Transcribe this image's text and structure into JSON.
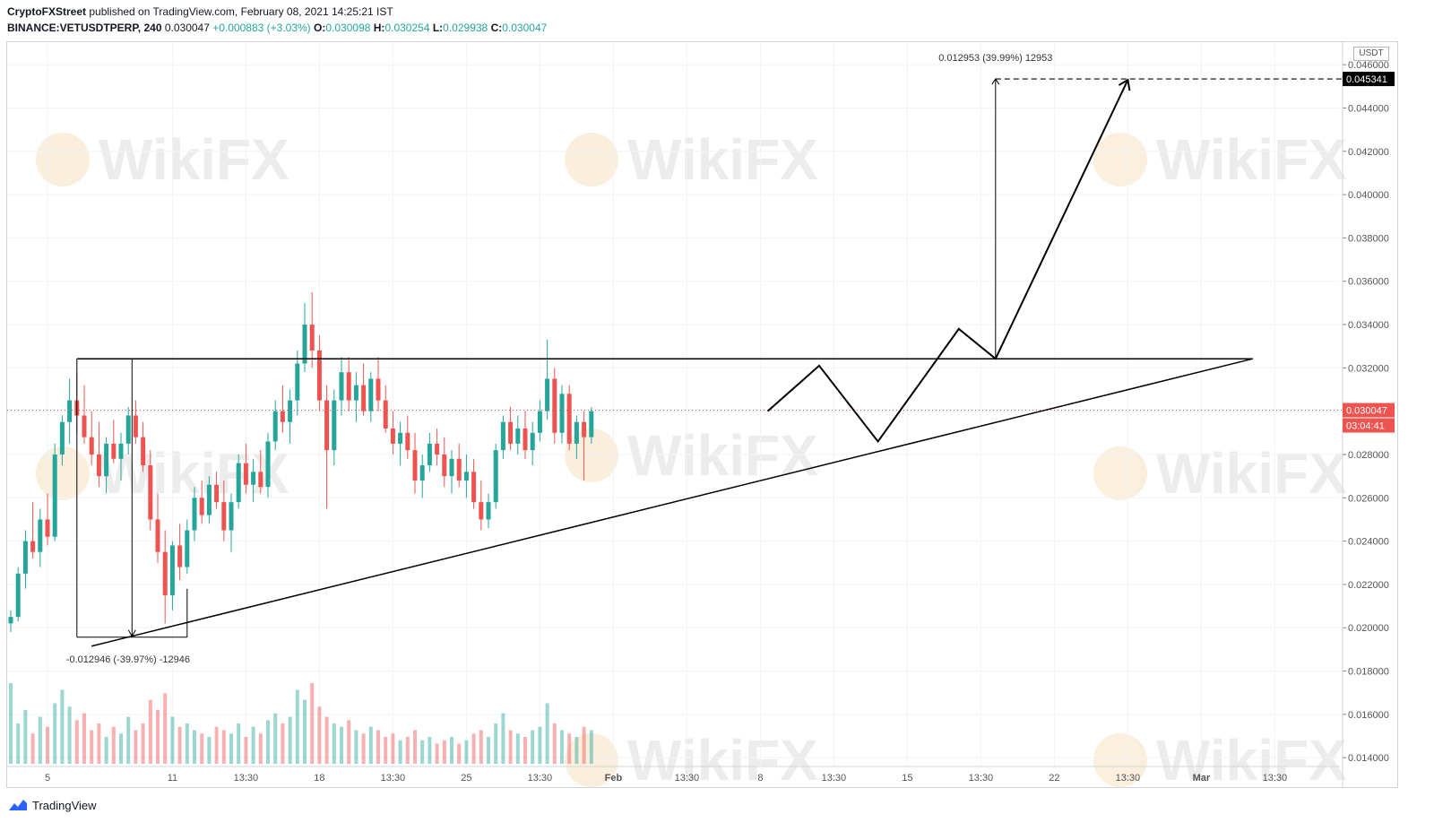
{
  "header": {
    "publisher": "CryptoFXStreet",
    "published_text": " published on TradingView.com, February 08, 2021 14:25:21 IST",
    "symbol": "BINANCE:VETUSDTPERP, 240",
    "last": "0.030047",
    "change": "+0.000883 (+3.03%)",
    "o_label": "O:",
    "o_value": "0.030098",
    "h_label": "H:",
    "h_value": "0.030254",
    "l_label": "L:",
    "l_value": "0.029938",
    "c_label": "C:",
    "c_value": "0.030047"
  },
  "footer": {
    "brand": "TradingView"
  },
  "watermark": "WikiFX",
  "colors": {
    "up": "#26a69a",
    "down": "#ef5350",
    "line": "#000000",
    "price_line": "#ef5350",
    "grid": "#f0f3fa"
  },
  "chart_data": {
    "type": "candlestick",
    "y_unit": "USDT",
    "ylim": [
      0.0138,
      0.047
    ],
    "y_ticks": [
      "0.046000",
      "0.044000",
      "0.042000",
      "0.040000",
      "0.038000",
      "0.036000",
      "0.034000",
      "0.032000",
      "0.030000",
      "0.028000",
      "0.026000",
      "0.024000",
      "0.022000",
      "0.020000",
      "0.018000",
      "0.016000",
      "0.014000"
    ],
    "x_ticks": [
      "5",
      "11",
      "13:30",
      "18",
      "13:30",
      "25",
      "13:30",
      "Feb",
      "13:30",
      "8",
      "13:30",
      "15",
      "13:30",
      "22",
      "13:30",
      "Mar",
      "13:30"
    ],
    "x_tick_index": [
      5,
      22,
      32,
      42,
      52,
      62,
      72,
      82,
      92,
      102,
      112,
      122,
      132,
      142,
      152,
      162,
      172
    ],
    "current_price_label": "0.030047",
    "countdown_label": "03:04:41",
    "target_price_label": "0.045341",
    "measure_up_label": "0.012953 (39.99%) 12953",
    "measure_down_label": "-0.012946 (-39.97%) -12946",
    "candles_ohlc": [
      [
        0.0202,
        0.0208,
        0.0198,
        0.0205
      ],
      [
        0.0205,
        0.0228,
        0.0203,
        0.0225
      ],
      [
        0.0225,
        0.0245,
        0.0218,
        0.024
      ],
      [
        0.024,
        0.0258,
        0.0232,
        0.0235
      ],
      [
        0.0235,
        0.0255,
        0.0228,
        0.025
      ],
      [
        0.025,
        0.0262,
        0.0238,
        0.0242
      ],
      [
        0.0242,
        0.0285,
        0.024,
        0.028
      ],
      [
        0.028,
        0.0298,
        0.0275,
        0.0295
      ],
      [
        0.0295,
        0.0315,
        0.0285,
        0.0305
      ],
      [
        0.0305,
        0.0318,
        0.029,
        0.0298
      ],
      [
        0.0298,
        0.0312,
        0.0285,
        0.0288
      ],
      [
        0.0288,
        0.03,
        0.0275,
        0.028
      ],
      [
        0.028,
        0.0295,
        0.0265,
        0.027
      ],
      [
        0.027,
        0.0288,
        0.0262,
        0.0285
      ],
      [
        0.0285,
        0.0296,
        0.0276,
        0.0278
      ],
      [
        0.0278,
        0.029,
        0.0268,
        0.0285
      ],
      [
        0.0285,
        0.0302,
        0.028,
        0.0298
      ],
      [
        0.0298,
        0.0305,
        0.0285,
        0.0288
      ],
      [
        0.0288,
        0.0295,
        0.0272,
        0.0275
      ],
      [
        0.0275,
        0.0282,
        0.0245,
        0.025
      ],
      [
        0.025,
        0.0262,
        0.023,
        0.0235
      ],
      [
        0.0235,
        0.0245,
        0.0202,
        0.0215
      ],
      [
        0.0215,
        0.024,
        0.0208,
        0.0238
      ],
      [
        0.0238,
        0.0248,
        0.0222,
        0.0228
      ],
      [
        0.0228,
        0.025,
        0.0225,
        0.0245
      ],
      [
        0.0245,
        0.0265,
        0.024,
        0.026
      ],
      [
        0.026,
        0.0268,
        0.0248,
        0.0252
      ],
      [
        0.0252,
        0.027,
        0.0248,
        0.0266
      ],
      [
        0.0266,
        0.0272,
        0.0255,
        0.0258
      ],
      [
        0.0258,
        0.0268,
        0.024,
        0.0245
      ],
      [
        0.0245,
        0.0262,
        0.0235,
        0.0258
      ],
      [
        0.0258,
        0.028,
        0.0255,
        0.0276
      ],
      [
        0.0276,
        0.0285,
        0.0262,
        0.0266
      ],
      [
        0.0266,
        0.0278,
        0.0258,
        0.0272
      ],
      [
        0.0272,
        0.0282,
        0.0262,
        0.0265
      ],
      [
        0.0265,
        0.029,
        0.026,
        0.0286
      ],
      [
        0.0286,
        0.0305,
        0.0282,
        0.03
      ],
      [
        0.03,
        0.0312,
        0.029,
        0.0295
      ],
      [
        0.0295,
        0.031,
        0.0285,
        0.0305
      ],
      [
        0.0305,
        0.0328,
        0.0298,
        0.0322
      ],
      [
        0.0322,
        0.035,
        0.0318,
        0.034
      ],
      [
        0.034,
        0.0355,
        0.032,
        0.0328
      ],
      [
        0.0328,
        0.0335,
        0.03,
        0.0305
      ],
      [
        0.0305,
        0.0312,
        0.0255,
        0.0282
      ],
      [
        0.0282,
        0.031,
        0.0275,
        0.0305
      ],
      [
        0.0305,
        0.0325,
        0.0298,
        0.0318
      ],
      [
        0.0318,
        0.0325,
        0.03,
        0.0305
      ],
      [
        0.0305,
        0.0318,
        0.0295,
        0.0312
      ],
      [
        0.0312,
        0.0322,
        0.0298,
        0.03
      ],
      [
        0.03,
        0.0318,
        0.0295,
        0.0315
      ],
      [
        0.0315,
        0.0325,
        0.03,
        0.0305
      ],
      [
        0.0305,
        0.0312,
        0.029,
        0.0292
      ],
      [
        0.0292,
        0.03,
        0.028,
        0.0285
      ],
      [
        0.0285,
        0.0295,
        0.0275,
        0.029
      ],
      [
        0.029,
        0.0298,
        0.0278,
        0.0282
      ],
      [
        0.0282,
        0.029,
        0.0262,
        0.0268
      ],
      [
        0.0268,
        0.028,
        0.026,
        0.0275
      ],
      [
        0.0275,
        0.029,
        0.0272,
        0.0285
      ],
      [
        0.0285,
        0.0292,
        0.0275,
        0.028
      ],
      [
        0.028,
        0.0288,
        0.0265,
        0.027
      ],
      [
        0.027,
        0.0282,
        0.0262,
        0.0278
      ],
      [
        0.0278,
        0.0285,
        0.0265,
        0.0268
      ],
      [
        0.0268,
        0.028,
        0.026,
        0.0272
      ],
      [
        0.0272,
        0.0278,
        0.0255,
        0.0258
      ],
      [
        0.0258,
        0.0268,
        0.0245,
        0.025
      ],
      [
        0.025,
        0.0262,
        0.0246,
        0.0258
      ],
      [
        0.0258,
        0.0285,
        0.0255,
        0.0282
      ],
      [
        0.0282,
        0.0298,
        0.0278,
        0.0295
      ],
      [
        0.0295,
        0.0302,
        0.0282,
        0.0285
      ],
      [
        0.0285,
        0.0298,
        0.028,
        0.0292
      ],
      [
        0.0292,
        0.03,
        0.0278,
        0.0282
      ],
      [
        0.0282,
        0.0295,
        0.0275,
        0.029
      ],
      [
        0.029,
        0.0305,
        0.0286,
        0.03
      ],
      [
        0.03,
        0.0333,
        0.0296,
        0.0315
      ],
      [
        0.0315,
        0.032,
        0.0285,
        0.029
      ],
      [
        0.029,
        0.0312,
        0.0285,
        0.0308
      ],
      [
        0.0308,
        0.0312,
        0.0282,
        0.0285
      ],
      [
        0.0285,
        0.0298,
        0.0278,
        0.0295
      ],
      [
        0.0295,
        0.03,
        0.0268,
        0.0288
      ],
      [
        0.0288,
        0.0302,
        0.0285,
        0.03
      ]
    ],
    "volumes": [
      120,
      60,
      80,
      45,
      70,
      55,
      90,
      110,
      85,
      65,
      75,
      50,
      60,
      40,
      55,
      45,
      70,
      50,
      60,
      95,
      80,
      105,
      70,
      55,
      60,
      50,
      45,
      40,
      55,
      50,
      45,
      60,
      40,
      55,
      45,
      65,
      75,
      60,
      70,
      110,
      95,
      120,
      85,
      70,
      60,
      55,
      65,
      50,
      45,
      55,
      50,
      40,
      45,
      35,
      40,
      50,
      35,
      40,
      30,
      35,
      40,
      30,
      35,
      45,
      50,
      40,
      60,
      75,
      50,
      45,
      40,
      50,
      55,
      90,
      60,
      50,
      45,
      40,
      55,
      50
    ],
    "triangle_resistance": 0.03242,
    "support_start": [
      11,
      0.01915
    ],
    "support_end": [
      169,
      0.03242
    ],
    "projection_path": [
      [
        103,
        0.03
      ],
      [
        110,
        0.0321
      ],
      [
        118,
        0.0286
      ],
      [
        129,
        0.0338
      ],
      [
        134,
        0.03242
      ],
      [
        152,
        0.0453
      ]
    ]
  }
}
